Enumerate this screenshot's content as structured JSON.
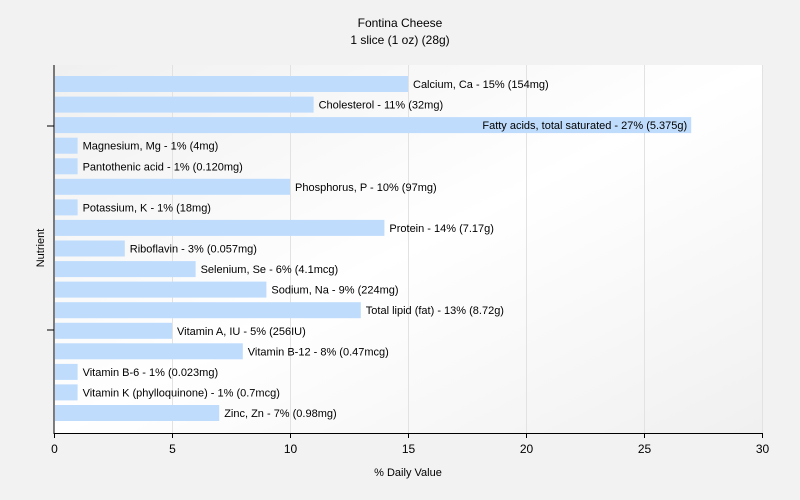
{
  "chart_data": {
    "type": "bar",
    "orientation": "horizontal",
    "title": "Fontina Cheese",
    "subtitle": "1 slice (1 oz) (28g)",
    "xlabel": "% Daily Value",
    "ylabel": "Nutrient",
    "xlim": [
      0,
      30
    ],
    "xticks": [
      0,
      5,
      10,
      15,
      20,
      25,
      30
    ],
    "grid": true,
    "bar_color": "#bfdcfc",
    "categories": [
      "Calcium, Ca",
      "Cholesterol",
      "Fatty acids, total saturated",
      "Magnesium, Mg",
      "Pantothenic acid",
      "Phosphorus, P",
      "Potassium, K",
      "Protein",
      "Riboflavin",
      "Selenium, Se",
      "Sodium, Na",
      "Total lipid (fat)",
      "Vitamin A, IU",
      "Vitamin B-12",
      "Vitamin B-6",
      "Vitamin K (phylloquinone)",
      "Zinc, Zn"
    ],
    "values": [
      15,
      11,
      27,
      1,
      1,
      10,
      1,
      14,
      3,
      6,
      9,
      13,
      5,
      8,
      1,
      1,
      7
    ],
    "labels": [
      "Calcium, Ca - 15% (154mg)",
      "Cholesterol - 11% (32mg)",
      "Fatty acids, total saturated - 27% (5.375g)",
      "Magnesium, Mg - 1% (4mg)",
      "Pantothenic acid - 1% (0.120mg)",
      "Phosphorus, P - 10% (97mg)",
      "Potassium, K - 1% (18mg)",
      "Protein - 14% (7.17g)",
      "Riboflavin - 3% (0.057mg)",
      "Selenium, Se - 6% (4.1mcg)",
      "Sodium, Na - 9% (224mg)",
      "Total lipid (fat) - 13% (8.72g)",
      "Vitamin A, IU - 5% (256IU)",
      "Vitamin B-12 - 8% (0.47mcg)",
      "Vitamin B-6 - 1% (0.023mg)",
      "Vitamin K (phylloquinone) - 1% (0.7mcg)",
      "Zinc, Zn - 7% (0.98mg)"
    ]
  }
}
